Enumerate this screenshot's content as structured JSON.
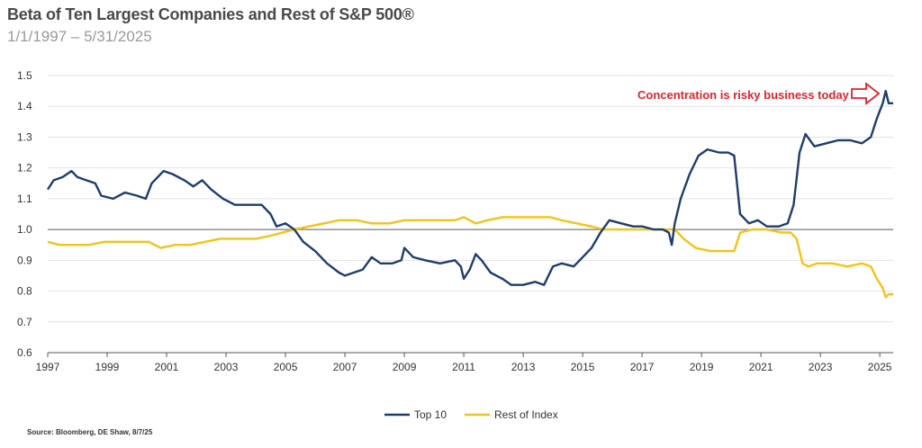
{
  "chart_data": {
    "type": "line",
    "title": "Beta of Ten Largest Companies and Rest of S&P 500®",
    "subtitle": "1/1/1997 – 5/31/2025",
    "xlabel": "",
    "ylabel": "",
    "xlim": [
      1997,
      2025.45
    ],
    "ylim": [
      0.6,
      1.5
    ],
    "x_ticks": [
      "1997",
      "1999",
      "2001",
      "2003",
      "2005",
      "2007",
      "2009",
      "2011",
      "2013",
      "2015",
      "2017",
      "2019",
      "2021",
      "2023",
      "2025"
    ],
    "y_ticks": [
      "0.6",
      "0.7",
      "0.8",
      "0.9",
      "1.0",
      "1.1",
      "1.2",
      "1.3",
      "1.4",
      "1.5"
    ],
    "grid": "horizontal",
    "reference_line": 1.0,
    "legend_position": "bottom-center",
    "annotation": "Concentration is risky business today",
    "source": "Source: Bloomberg, DE Shaw, 8/7/25",
    "series": [
      {
        "name": "Top 10",
        "color": "#1f3d6b",
        "points": [
          [
            1997.0,
            1.13
          ],
          [
            1997.2,
            1.16
          ],
          [
            1997.5,
            1.17
          ],
          [
            1997.8,
            1.19
          ],
          [
            1998.0,
            1.17
          ],
          [
            1998.3,
            1.16
          ],
          [
            1998.6,
            1.15
          ],
          [
            1998.8,
            1.11
          ],
          [
            1999.2,
            1.1
          ],
          [
            1999.6,
            1.12
          ],
          [
            2000.0,
            1.11
          ],
          [
            2000.3,
            1.1
          ],
          [
            2000.5,
            1.15
          ],
          [
            2000.9,
            1.19
          ],
          [
            2001.2,
            1.18
          ],
          [
            2001.6,
            1.16
          ],
          [
            2001.9,
            1.14
          ],
          [
            2002.2,
            1.16
          ],
          [
            2002.5,
            1.13
          ],
          [
            2002.9,
            1.1
          ],
          [
            2003.3,
            1.08
          ],
          [
            2003.8,
            1.08
          ],
          [
            2004.2,
            1.08
          ],
          [
            2004.5,
            1.05
          ],
          [
            2004.7,
            1.01
          ],
          [
            2005.0,
            1.02
          ],
          [
            2005.3,
            1.0
          ],
          [
            2005.6,
            0.96
          ],
          [
            2006.0,
            0.93
          ],
          [
            2006.4,
            0.89
          ],
          [
            2006.8,
            0.86
          ],
          [
            2007.0,
            0.85
          ],
          [
            2007.3,
            0.86
          ],
          [
            2007.6,
            0.87
          ],
          [
            2007.9,
            0.91
          ],
          [
            2008.2,
            0.89
          ],
          [
            2008.6,
            0.89
          ],
          [
            2008.9,
            0.9
          ],
          [
            2009.0,
            0.94
          ],
          [
            2009.3,
            0.91
          ],
          [
            2009.7,
            0.9
          ],
          [
            2010.2,
            0.89
          ],
          [
            2010.7,
            0.9
          ],
          [
            2010.9,
            0.88
          ],
          [
            2011.0,
            0.84
          ],
          [
            2011.2,
            0.87
          ],
          [
            2011.4,
            0.92
          ],
          [
            2011.6,
            0.9
          ],
          [
            2011.9,
            0.86
          ],
          [
            2012.3,
            0.84
          ],
          [
            2012.6,
            0.82
          ],
          [
            2013.0,
            0.82
          ],
          [
            2013.4,
            0.83
          ],
          [
            2013.7,
            0.82
          ],
          [
            2014.0,
            0.88
          ],
          [
            2014.3,
            0.89
          ],
          [
            2014.7,
            0.88
          ],
          [
            2015.0,
            0.91
          ],
          [
            2015.3,
            0.94
          ],
          [
            2015.6,
            0.99
          ],
          [
            2015.9,
            1.03
          ],
          [
            2016.3,
            1.02
          ],
          [
            2016.7,
            1.01
          ],
          [
            2017.0,
            1.01
          ],
          [
            2017.4,
            1.0
          ],
          [
            2017.7,
            1.0
          ],
          [
            2017.9,
            0.99
          ],
          [
            2018.0,
            0.95
          ],
          [
            2018.1,
            1.02
          ],
          [
            2018.3,
            1.1
          ],
          [
            2018.6,
            1.18
          ],
          [
            2018.9,
            1.24
          ],
          [
            2019.2,
            1.26
          ],
          [
            2019.6,
            1.25
          ],
          [
            2019.9,
            1.25
          ],
          [
            2020.1,
            1.24
          ],
          [
            2020.3,
            1.05
          ],
          [
            2020.6,
            1.02
          ],
          [
            2020.9,
            1.03
          ],
          [
            2021.2,
            1.01
          ],
          [
            2021.6,
            1.01
          ],
          [
            2021.9,
            1.02
          ],
          [
            2022.1,
            1.08
          ],
          [
            2022.3,
            1.25
          ],
          [
            2022.5,
            1.31
          ],
          [
            2022.8,
            1.27
          ],
          [
            2023.2,
            1.28
          ],
          [
            2023.6,
            1.29
          ],
          [
            2024.0,
            1.29
          ],
          [
            2024.4,
            1.28
          ],
          [
            2024.7,
            1.3
          ],
          [
            2024.9,
            1.36
          ],
          [
            2025.1,
            1.41
          ],
          [
            2025.2,
            1.45
          ],
          [
            2025.3,
            1.41
          ],
          [
            2025.45,
            1.41
          ]
        ]
      },
      {
        "name": "Rest of Index",
        "color": "#f2c318",
        "points": [
          [
            1997.0,
            0.96
          ],
          [
            1997.4,
            0.95
          ],
          [
            1997.9,
            0.95
          ],
          [
            1998.4,
            0.95
          ],
          [
            1998.9,
            0.96
          ],
          [
            1999.5,
            0.96
          ],
          [
            2000.1,
            0.96
          ],
          [
            2000.4,
            0.96
          ],
          [
            2000.8,
            0.94
          ],
          [
            2001.3,
            0.95
          ],
          [
            2001.8,
            0.95
          ],
          [
            2002.3,
            0.96
          ],
          [
            2002.8,
            0.97
          ],
          [
            2003.4,
            0.97
          ],
          [
            2004.0,
            0.97
          ],
          [
            2004.5,
            0.98
          ],
          [
            2004.9,
            0.99
          ],
          [
            2005.3,
            1.0
          ],
          [
            2005.8,
            1.01
          ],
          [
            2006.3,
            1.02
          ],
          [
            2006.8,
            1.03
          ],
          [
            2007.4,
            1.03
          ],
          [
            2007.9,
            1.02
          ],
          [
            2008.5,
            1.02
          ],
          [
            2009.0,
            1.03
          ],
          [
            2009.6,
            1.03
          ],
          [
            2010.2,
            1.03
          ],
          [
            2010.7,
            1.03
          ],
          [
            2011.0,
            1.04
          ],
          [
            2011.4,
            1.02
          ],
          [
            2011.8,
            1.03
          ],
          [
            2012.3,
            1.04
          ],
          [
            2012.9,
            1.04
          ],
          [
            2013.5,
            1.04
          ],
          [
            2013.9,
            1.04
          ],
          [
            2014.3,
            1.03
          ],
          [
            2014.8,
            1.02
          ],
          [
            2015.3,
            1.01
          ],
          [
            2015.7,
            1.0
          ],
          [
            2016.1,
            1.0
          ],
          [
            2016.7,
            1.0
          ],
          [
            2017.2,
            1.0
          ],
          [
            2017.8,
            1.0
          ],
          [
            2018.1,
            1.0
          ],
          [
            2018.4,
            0.97
          ],
          [
            2018.8,
            0.94
          ],
          [
            2019.3,
            0.93
          ],
          [
            2019.8,
            0.93
          ],
          [
            2020.1,
            0.93
          ],
          [
            2020.3,
            0.99
          ],
          [
            2020.7,
            1.0
          ],
          [
            2021.2,
            1.0
          ],
          [
            2021.7,
            0.99
          ],
          [
            2022.0,
            0.99
          ],
          [
            2022.2,
            0.97
          ],
          [
            2022.4,
            0.89
          ],
          [
            2022.6,
            0.88
          ],
          [
            2022.9,
            0.89
          ],
          [
            2023.4,
            0.89
          ],
          [
            2023.9,
            0.88
          ],
          [
            2024.4,
            0.89
          ],
          [
            2024.7,
            0.88
          ],
          [
            2024.9,
            0.84
          ],
          [
            2025.1,
            0.81
          ],
          [
            2025.2,
            0.78
          ],
          [
            2025.3,
            0.79
          ],
          [
            2025.45,
            0.79
          ]
        ]
      }
    ]
  }
}
